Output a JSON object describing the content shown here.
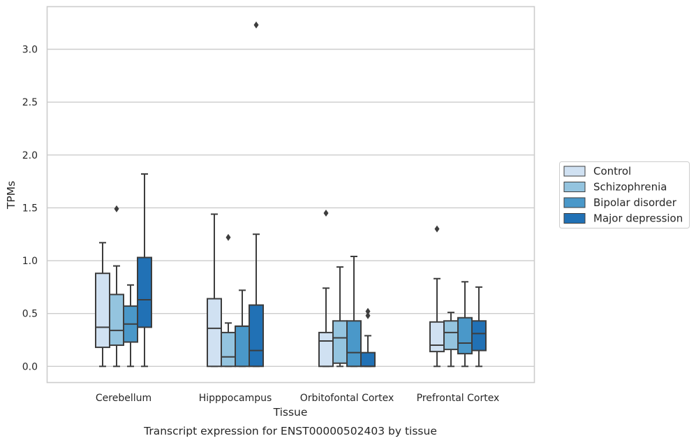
{
  "chart_data": {
    "type": "boxplot",
    "title": "Transcript expression for ENST00000502403 by tissue",
    "xlabel": "Tissue",
    "ylabel": "TPMs",
    "ylim": [
      -0.15,
      3.4
    ],
    "yticks": [
      "0.0",
      "0.5",
      "1.0",
      "1.5",
      "2.0",
      "2.5",
      "3.0"
    ],
    "ytick_values": [
      0,
      0.5,
      1.0,
      1.5,
      2.0,
      2.5,
      3.0
    ],
    "grid": true,
    "legend_position": "right",
    "categories": [
      "Cerebellum",
      "Hipppocampus",
      "Orbitofontal Cortex",
      "Prefrontal Cortex"
    ],
    "series": [
      {
        "name": "Control",
        "color": "#d0e1f2",
        "boxes": [
          {
            "whislo": 0.0,
            "q1": 0.18,
            "med": 0.37,
            "q3": 0.88,
            "whishi": 1.17,
            "fliers": []
          },
          {
            "whislo": 0.0,
            "q1": 0.0,
            "med": 0.36,
            "q3": 0.64,
            "whishi": 1.44,
            "fliers": []
          },
          {
            "whislo": 0.0,
            "q1": 0.0,
            "med": 0.24,
            "q3": 0.32,
            "whishi": 0.74,
            "fliers": [
              1.45
            ]
          },
          {
            "whislo": 0.0,
            "q1": 0.14,
            "med": 0.2,
            "q3": 0.42,
            "whishi": 0.83,
            "fliers": [
              1.3
            ]
          }
        ]
      },
      {
        "name": "Schizophrenia",
        "color": "#94c4df",
        "boxes": [
          {
            "whislo": 0.0,
            "q1": 0.2,
            "med": 0.34,
            "q3": 0.68,
            "whishi": 0.95,
            "fliers": [
              1.49
            ]
          },
          {
            "whislo": 0.0,
            "q1": 0.0,
            "med": 0.09,
            "q3": 0.32,
            "whishi": 0.41,
            "fliers": [
              1.22
            ]
          },
          {
            "whislo": 0.0,
            "q1": 0.03,
            "med": 0.27,
            "q3": 0.43,
            "whishi": 0.94,
            "fliers": []
          },
          {
            "whislo": 0.0,
            "q1": 0.16,
            "med": 0.32,
            "q3": 0.43,
            "whishi": 0.51,
            "fliers": []
          }
        ]
      },
      {
        "name": "Bipolar disorder",
        "color": "#4a98c9",
        "boxes": [
          {
            "whislo": 0.0,
            "q1": 0.23,
            "med": 0.4,
            "q3": 0.57,
            "whishi": 0.77,
            "fliers": []
          },
          {
            "whislo": 0.0,
            "q1": 0.0,
            "med": 0.38,
            "q3": 0.38,
            "whishi": 0.72,
            "fliers": []
          },
          {
            "whislo": 0.0,
            "q1": 0.0,
            "med": 0.13,
            "q3": 0.43,
            "whishi": 1.04,
            "fliers": []
          },
          {
            "whislo": 0.0,
            "q1": 0.12,
            "med": 0.22,
            "q3": 0.46,
            "whishi": 0.8,
            "fliers": []
          }
        ]
      },
      {
        "name": "Major depression",
        "color": "#2171b5",
        "boxes": [
          {
            "whislo": 0.0,
            "q1": 0.37,
            "med": 0.63,
            "q3": 1.03,
            "whishi": 1.82,
            "fliers": []
          },
          {
            "whislo": 0.0,
            "q1": 0.0,
            "med": 0.15,
            "q3": 0.58,
            "whishi": 1.25,
            "fliers": [
              3.23
            ]
          },
          {
            "whislo": 0.0,
            "q1": 0.0,
            "med": 0.0,
            "q3": 0.13,
            "whishi": 0.29,
            "fliers": [
              0.48,
              0.52
            ]
          },
          {
            "whislo": 0.0,
            "q1": 0.15,
            "med": 0.31,
            "q3": 0.43,
            "whishi": 0.75,
            "fliers": []
          }
        ]
      }
    ]
  }
}
